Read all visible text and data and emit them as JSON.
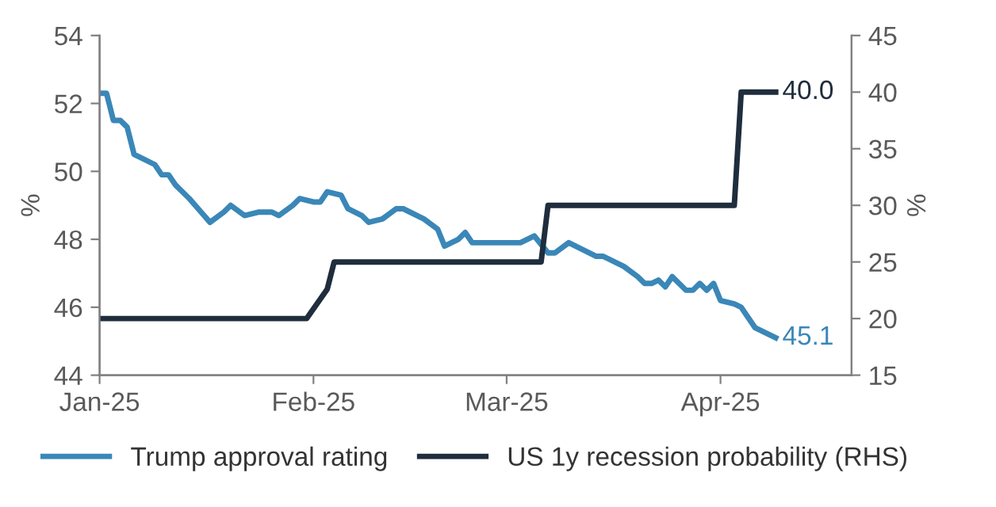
{
  "chart_data": {
    "type": "line",
    "xlim": [
      "2025-01-01",
      "2025-04-20"
    ],
    "xticks": [
      {
        "value": "2025-01-01",
        "label": "Jan-25"
      },
      {
        "value": "2025-02-01",
        "label": "Feb-25"
      },
      {
        "value": "2025-03-01",
        "label": "Mar-25"
      },
      {
        "value": "2025-04-01",
        "label": "Apr-25"
      }
    ],
    "ylim": [
      44,
      54
    ],
    "yticks": [
      44,
      46,
      48,
      50,
      52,
      54
    ],
    "y2lim": [
      15,
      45
    ],
    "y2ticks": [
      15,
      20,
      25,
      30,
      35,
      40,
      45
    ],
    "ylabel": "%",
    "y2label": "%",
    "grid": false,
    "legend": "bottom",
    "marker": "none",
    "line_style": "solid",
    "series": [
      {
        "name": "Trump approval rating",
        "color": "#3a87b8",
        "x": [
          "2025-01-01",
          "2025-01-02",
          "2025-01-03",
          "2025-01-04",
          "2025-01-05",
          "2025-01-06",
          "2025-01-09",
          "2025-01-10",
          "2025-01-11",
          "2025-01-12",
          "2025-01-14",
          "2025-01-17",
          "2025-01-19",
          "2025-01-20",
          "2025-01-22",
          "2025-01-24",
          "2025-01-26",
          "2025-01-27",
          "2025-01-29",
          "2025-01-30",
          "2025-02-01",
          "2025-02-02",
          "2025-02-03",
          "2025-02-05",
          "2025-02-06",
          "2025-02-08",
          "2025-02-09",
          "2025-02-11",
          "2025-02-13",
          "2025-02-14",
          "2025-02-17",
          "2025-02-19",
          "2025-02-20",
          "2025-02-22",
          "2025-02-23",
          "2025-02-24",
          "2025-03-03",
          "2025-03-05",
          "2025-03-07",
          "2025-03-08",
          "2025-03-10",
          "2025-03-14",
          "2025-03-15",
          "2025-03-18",
          "2025-03-20",
          "2025-03-21",
          "2025-03-22",
          "2025-03-23",
          "2025-03-24",
          "2025-03-25",
          "2025-03-27",
          "2025-03-28",
          "2025-03-29",
          "2025-03-30",
          "2025-03-31",
          "2025-04-01",
          "2025-04-03",
          "2025-04-04",
          "2025-04-05",
          "2025-04-06",
          "2025-04-07",
          "2025-04-09"
        ],
        "values": [
          52.3,
          52.3,
          51.5,
          51.5,
          51.3,
          50.5,
          50.2,
          49.9,
          49.9,
          49.6,
          49.2,
          48.5,
          48.8,
          49.0,
          48.7,
          48.8,
          48.8,
          48.7,
          49.0,
          49.2,
          49.1,
          49.1,
          49.4,
          49.3,
          48.9,
          48.7,
          48.5,
          48.6,
          48.9,
          48.9,
          48.6,
          48.3,
          47.8,
          48.0,
          48.2,
          47.9,
          47.9,
          48.1,
          47.6,
          47.6,
          47.9,
          47.5,
          47.5,
          47.2,
          46.9,
          46.7,
          46.7,
          46.8,
          46.6,
          46.9,
          46.5,
          46.5,
          46.7,
          46.5,
          46.7,
          46.2,
          46.1,
          46.0,
          45.7,
          45.4,
          45.3,
          45.1
        ],
        "value_labels": [
          null,
          null,
          null,
          null,
          null,
          null,
          null,
          null,
          null,
          null,
          null,
          null,
          null,
          null,
          null,
          null,
          null,
          null,
          null,
          null,
          null,
          null,
          null,
          null,
          null,
          null,
          null,
          null,
          null,
          null,
          null,
          null,
          null,
          null,
          null,
          null,
          null,
          null,
          null,
          null,
          null,
          null,
          null,
          null,
          null,
          null,
          null,
          null,
          null,
          null,
          null,
          null,
          null,
          null,
          null,
          null,
          null,
          null,
          null,
          null,
          null,
          "45.1"
        ]
      },
      {
        "name": "US 1y recession probability (RHS)",
        "color": "#1f2d3d",
        "axis": "y2",
        "x": [
          "2025-01-01",
          "2025-01-31",
          "2025-02-03",
          "2025-02-04",
          "2025-03-06",
          "2025-03-07",
          "2025-04-03",
          "2025-04-04",
          "2025-04-09"
        ],
        "values": [
          20,
          20,
          22.6,
          25,
          25,
          30,
          30,
          40,
          40
        ],
        "value_labels": [
          null,
          null,
          null,
          null,
          null,
          null,
          null,
          null,
          "40.0"
        ]
      }
    ]
  }
}
